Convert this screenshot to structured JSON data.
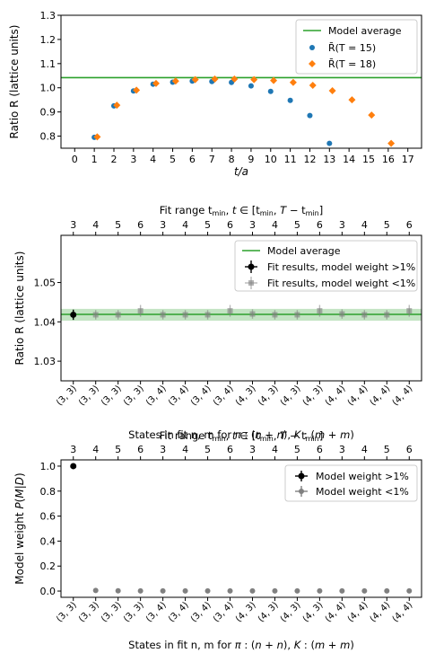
{
  "colors": {
    "blue": "#1f77b4",
    "orange": "#ff7f0e",
    "green": "#2ca02c",
    "band": "#a9d9a9",
    "black": "#000000",
    "gray": "#808080"
  },
  "chart_data": [
    {
      "type": "scatter",
      "xlabel": "t/a",
      "ylabel": "Ratio R (lattice units)",
      "xlim": [
        -0.7,
        17.7
      ],
      "ylim": [
        0.75,
        1.3
      ],
      "xticks": [
        0,
        1,
        2,
        3,
        4,
        5,
        6,
        7,
        8,
        9,
        10,
        11,
        12,
        13,
        14,
        15,
        16,
        17
      ],
      "yticks": [
        0.8,
        0.9,
        1.0,
        1.1,
        1.2,
        1.3
      ],
      "ytick_labels": [
        "0.8",
        "0.9",
        "1.0",
        "1.1",
        "1.2",
        "1.3"
      ],
      "model_average": 1.042,
      "legend": {
        "position": "top-right",
        "entries": [
          "Model average",
          "R̄(T = 15)",
          "R̄(T = 18)"
        ]
      },
      "series": [
        {
          "name": "R̄(T = 15)",
          "marker": "circle",
          "x": [
            1,
            2,
            3,
            4,
            5,
            6,
            7,
            8,
            9,
            10,
            11,
            12,
            13
          ],
          "y": [
            0.795,
            0.925,
            0.987,
            1.015,
            1.023,
            1.028,
            1.026,
            1.022,
            1.008,
            0.985,
            0.948,
            0.885,
            0.77
          ]
        },
        {
          "name": "R̄(T = 18)",
          "marker": "diamond",
          "x": [
            1.15,
            2.15,
            3.15,
            4.15,
            5.15,
            6.15,
            7.15,
            8.15,
            9.15,
            10.15,
            11.15,
            12.15,
            13.15,
            14.15,
            15.15,
            16.15
          ],
          "y": [
            0.797,
            0.928,
            0.99,
            1.018,
            1.028,
            1.034,
            1.036,
            1.036,
            1.034,
            1.03,
            1.022,
            1.01,
            0.988,
            0.95,
            0.887,
            0.77
          ]
        }
      ]
    },
    {
      "type": "scatter",
      "top_xlabel": "Fit range t_min, t ∈ [t_min, T − t_min]",
      "top_ticks": [
        "3",
        "4",
        "5",
        "6",
        "3",
        "4",
        "5",
        "6",
        "3",
        "4",
        "5",
        "6",
        "3",
        "4",
        "5",
        "6"
      ],
      "xlabel": "States in fit n, m for π:(n+n), K:(m+m)",
      "ylabel": "Ratio R (lattice units)",
      "categories": [
        "(3, 3)",
        "(3, 3)",
        "(3, 3)",
        "(3, 3)",
        "(3, 4)",
        "(3, 4)",
        "(3, 4)",
        "(3, 4)",
        "(4, 3)",
        "(4, 3)",
        "(4, 3)",
        "(4, 3)",
        "(4, 4)",
        "(4, 4)",
        "(4, 4)",
        "(4, 4)"
      ],
      "ylim": [
        1.025,
        1.062
      ],
      "yticks": [
        1.03,
        1.04,
        1.05
      ],
      "ytick_labels": [
        "1.03",
        "1.04",
        "1.05"
      ],
      "model_average": 1.0419,
      "band": [
        1.0403,
        1.0433
      ],
      "legend": {
        "position": "top-right",
        "entries": [
          "Model average",
          "Fit results, model weight >1%",
          "Fit results, model weight <1%"
        ]
      },
      "series": [
        {
          "name": "Fit results, model weight >1%",
          "indices": [
            0
          ],
          "values": [
            1.0418
          ],
          "errors": [
            0.0013
          ]
        },
        {
          "name": "Fit results, model weight <1%",
          "indices": [
            1,
            2,
            3,
            4,
            5,
            6,
            7,
            8,
            9,
            10,
            11,
            12,
            13,
            14,
            15
          ],
          "values": [
            1.0418,
            1.0418,
            1.0428,
            1.0418,
            1.0418,
            1.0418,
            1.0428,
            1.042,
            1.0418,
            1.0418,
            1.0428,
            1.042,
            1.0418,
            1.0418,
            1.0428
          ],
          "errors": [
            0.0012,
            0.0012,
            0.0015,
            0.0012,
            0.0012,
            0.0012,
            0.0015,
            0.0012,
            0.0012,
            0.0012,
            0.0015,
            0.0012,
            0.0012,
            0.0012,
            0.0015
          ]
        }
      ]
    },
    {
      "type": "scatter",
      "top_xlabel": "Fit range t_min, t ∈ [t_min, T − t_min]",
      "top_ticks": [
        "3",
        "4",
        "5",
        "6",
        "3",
        "4",
        "5",
        "6",
        "3",
        "4",
        "5",
        "6",
        "3",
        "4",
        "5",
        "6"
      ],
      "xlabel": "States in fit n, m for π:(n+n), K:(m+m)",
      "ylabel": "Model weight P(M|D)",
      "categories": [
        "(3, 3)",
        "(3, 3)",
        "(3, 3)",
        "(3, 3)",
        "(3, 4)",
        "(3, 4)",
        "(3, 4)",
        "(3, 4)",
        "(4, 3)",
        "(4, 3)",
        "(4, 3)",
        "(4, 3)",
        "(4, 4)",
        "(4, 4)",
        "(4, 4)",
        "(4, 4)"
      ],
      "ylim": [
        -0.05,
        1.05
      ],
      "yticks": [
        0.0,
        0.2,
        0.4,
        0.6,
        0.8,
        1.0
      ],
      "ytick_labels": [
        "0.0",
        "0.2",
        "0.4",
        "0.6",
        "0.8",
        "1.0"
      ],
      "legend": {
        "position": "top-right",
        "entries": [
          "Model weight >1%",
          "Model weight <1%"
        ]
      },
      "series": [
        {
          "name": "Model weight >1%",
          "indices": [
            0
          ],
          "values": [
            1.0
          ]
        },
        {
          "name": "Model weight <1%",
          "indices": [
            1,
            2,
            3,
            4,
            5,
            6,
            7,
            8,
            9,
            10,
            11,
            12,
            13,
            14,
            15
          ],
          "values": [
            0.005,
            0.002,
            0.001,
            0.001,
            0.001,
            0.001,
            0.001,
            0.001,
            0.001,
            0.001,
            0.001,
            0.001,
            0.001,
            0.001,
            0.001
          ]
        }
      ]
    }
  ]
}
